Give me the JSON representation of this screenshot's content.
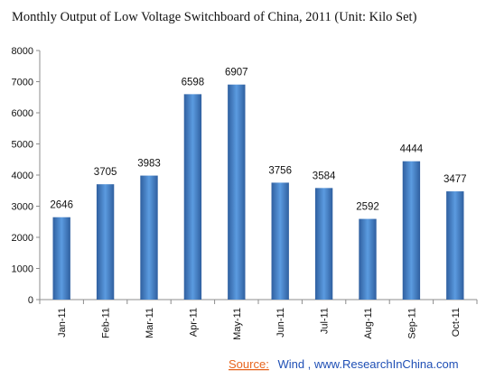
{
  "chart_data": {
    "type": "bar",
    "title": "Monthly Output of Low Voltage Switchboard of China, 2011 (Unit: Kilo Set)",
    "categories": [
      "Jan-11",
      "Feb-11",
      "Mar-11",
      "Apr-11",
      "May-11",
      "Jun-11",
      "Jul-11",
      "Aug-11",
      "Sep-11",
      "Oct-11"
    ],
    "values": [
      2646,
      3705,
      3983,
      6598,
      6907,
      3756,
      3584,
      2592,
      4444,
      3477
    ],
    "data_labels": [
      "2646",
      "3705",
      "3983",
      "6598",
      "6907",
      "3756",
      "3584",
      "2592",
      "4444",
      "3477"
    ],
    "xlabel": "",
    "ylabel": "",
    "ylim": [
      0,
      8000
    ],
    "yticks": [
      0,
      1000,
      2000,
      3000,
      4000,
      5000,
      6000,
      7000,
      8000
    ],
    "grid": false,
    "legend": "none",
    "bar_color": "#3a78c4",
    "bar_color_light": "#5b9be0",
    "bar_color_dark": "#2f5f9f"
  },
  "source": {
    "label": "Source:",
    "text": "Wind , www.ResearchInChina.com",
    "label_color": "#e8651e",
    "text_color": "#1f4fb5"
  }
}
